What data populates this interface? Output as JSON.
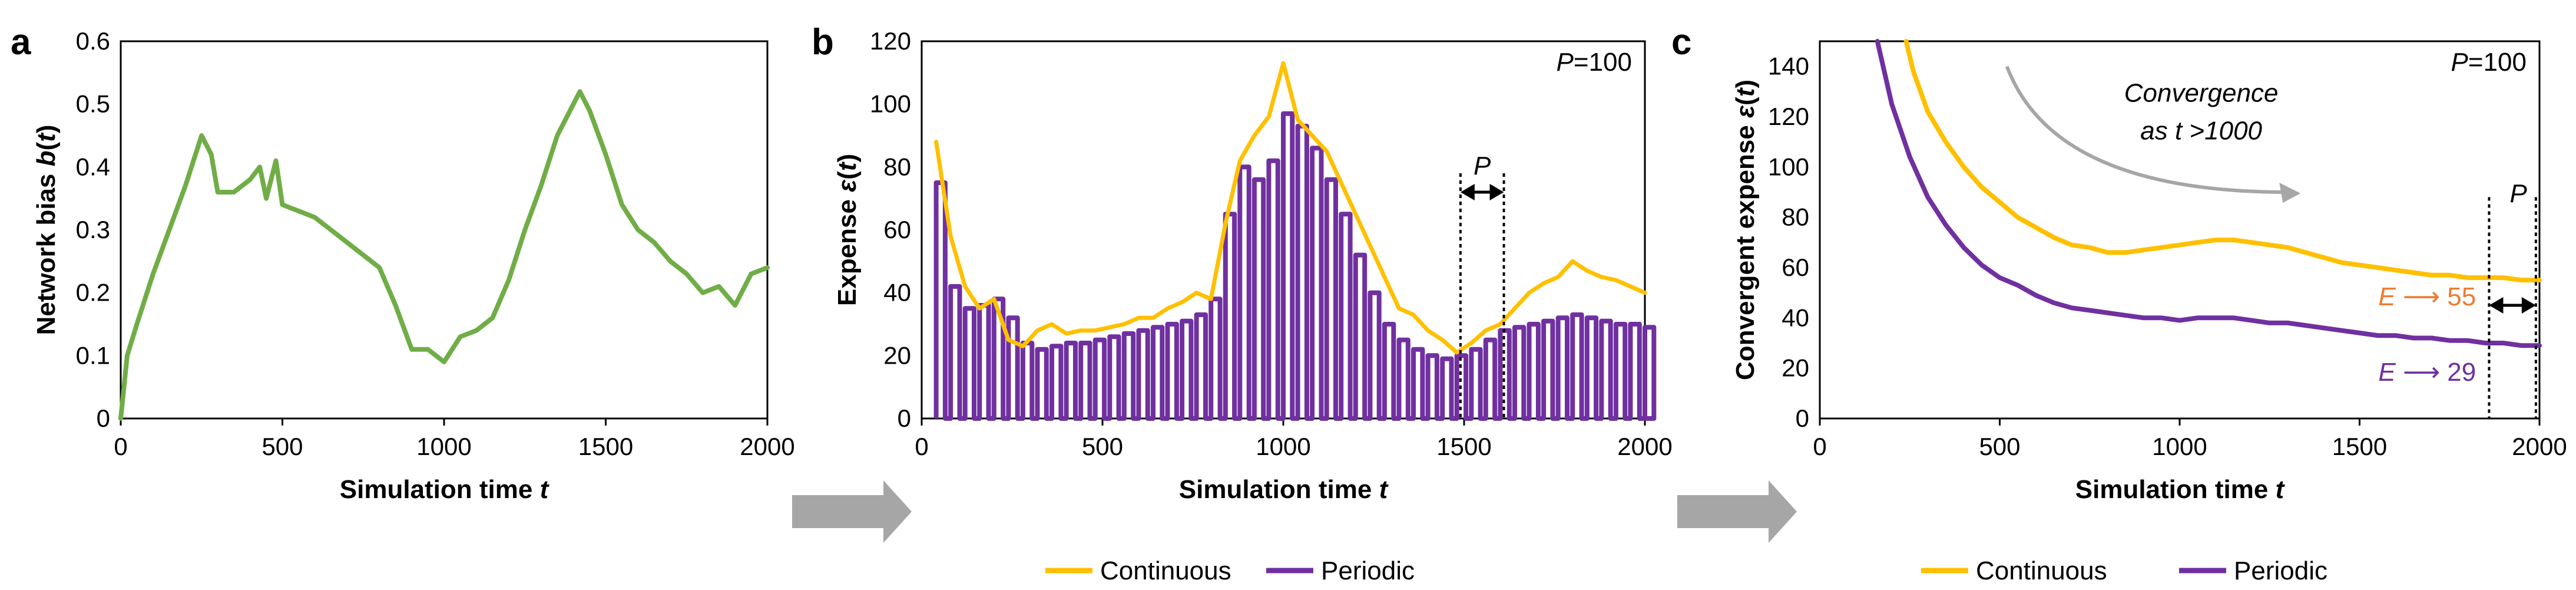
{
  "colors": {
    "green": "#70AD47",
    "continuous": "#FFC000",
    "periodic": "#7030A0",
    "arrow": "#A6A6A6",
    "E55": "#ED7D31",
    "E29": "#7030A0"
  },
  "chart_data": [
    {
      "panel": "a",
      "type": "line",
      "title": "",
      "xlabel": "Simulation time t",
      "ylabel": "Network bias b(t)",
      "xlim": [
        0,
        2000
      ],
      "ylim": [
        0,
        0.6
      ],
      "xticks": [
        "0",
        "500",
        "1000",
        "1500",
        "2000"
      ],
      "yticks": [
        "0",
        "0.1",
        "0.2",
        "0.3",
        "0.4",
        "0.5",
        "0.6"
      ],
      "series": [
        {
          "name": "b(t)",
          "x": [
            0,
            20,
            50,
            100,
            150,
            200,
            250,
            280,
            300,
            350,
            400,
            430,
            450,
            480,
            500,
            550,
            600,
            650,
            700,
            750,
            800,
            850,
            900,
            950,
            1000,
            1050,
            1100,
            1150,
            1200,
            1250,
            1300,
            1350,
            1400,
            1420,
            1450,
            1500,
            1550,
            1600,
            1650,
            1700,
            1750,
            1800,
            1850,
            1900,
            1950,
            2000
          ],
          "values": [
            0,
            0.1,
            0.15,
            0.23,
            0.3,
            0.37,
            0.45,
            0.42,
            0.36,
            0.36,
            0.38,
            0.4,
            0.35,
            0.41,
            0.34,
            0.33,
            0.32,
            0.3,
            0.28,
            0.26,
            0.24,
            0.18,
            0.11,
            0.11,
            0.09,
            0.13,
            0.14,
            0.16,
            0.22,
            0.3,
            0.37,
            0.45,
            0.5,
            0.52,
            0.49,
            0.42,
            0.34,
            0.3,
            0.28,
            0.25,
            0.23,
            0.2,
            0.21,
            0.18,
            0.23,
            0.24
          ]
        }
      ]
    },
    {
      "panel": "b",
      "type": "line",
      "title": "",
      "xlabel": "Simulation time t",
      "ylabel": "Expense ε(t)",
      "xlim": [
        0,
        2000
      ],
      "ylim": [
        0,
        120
      ],
      "xticks": [
        "0",
        "500",
        "1000",
        "1500",
        "2000"
      ],
      "yticks": [
        "0",
        "20",
        "40",
        "60",
        "80",
        "100",
        "120"
      ],
      "annotation": "P=100",
      "period_label": "P",
      "period_marks": [
        1490,
        1610
      ],
      "series": [
        {
          "name": "Continuous",
          "x": [
            40,
            80,
            120,
            160,
            200,
            240,
            280,
            320,
            360,
            400,
            440,
            480,
            520,
            560,
            600,
            640,
            680,
            720,
            760,
            800,
            840,
            880,
            920,
            960,
            1000,
            1040,
            1080,
            1120,
            1160,
            1200,
            1240,
            1280,
            1320,
            1360,
            1400,
            1440,
            1480,
            1520,
            1560,
            1600,
            1640,
            1680,
            1720,
            1760,
            1800,
            1840,
            1880,
            1920,
            1960,
            2000
          ],
          "values": [
            88,
            58,
            42,
            35,
            38,
            25,
            23,
            28,
            30,
            27,
            28,
            28,
            29,
            30,
            32,
            32,
            35,
            37,
            40,
            38,
            62,
            82,
            90,
            96,
            113,
            95,
            90,
            85,
            75,
            65,
            55,
            45,
            35,
            33,
            28,
            25,
            21,
            24,
            28,
            30,
            35,
            40,
            43,
            45,
            50,
            47,
            45,
            44,
            42,
            40
          ]
        },
        {
          "name": "Periodic",
          "x": [
            40,
            80,
            120,
            160,
            200,
            240,
            280,
            320,
            360,
            400,
            440,
            480,
            520,
            560,
            600,
            640,
            680,
            720,
            760,
            800,
            840,
            880,
            920,
            960,
            1000,
            1040,
            1080,
            1120,
            1160,
            1200,
            1240,
            1280,
            1320,
            1360,
            1400,
            1440,
            1480,
            1520,
            1560,
            1600,
            1640,
            1680,
            1720,
            1760,
            1800,
            1840,
            1880,
            1920,
            1960,
            2000
          ],
          "values": [
            75,
            42,
            35,
            36,
            38,
            32,
            24,
            22,
            23,
            24,
            24,
            25,
            26,
            27,
            28,
            29,
            30,
            31,
            33,
            38,
            65,
            80,
            76,
            82,
            97,
            93,
            86,
            76,
            65,
            52,
            40,
            30,
            25,
            22,
            20,
            19,
            20,
            22,
            25,
            28,
            29,
            30,
            31,
            32,
            33,
            32,
            31,
            30,
            30,
            29
          ]
        }
      ]
    },
    {
      "panel": "c",
      "type": "line",
      "title": "",
      "xlabel": "Simulation time t",
      "ylabel": "Convergent expense ε(t)",
      "xlim": [
        0,
        2000
      ],
      "ylim": [
        0,
        150
      ],
      "xticks": [
        "0",
        "500",
        "1000",
        "1500",
        "2000"
      ],
      "yticks": [
        "0",
        "20",
        "40",
        "60",
        "80",
        "100",
        "120",
        "140"
      ],
      "annotation": "P=100",
      "convergence_note": [
        "Convergence",
        "as t >1000"
      ],
      "period_label": "P",
      "period_marks": [
        1860,
        1990
      ],
      "limit_labels": [
        "E ⟶ 55",
        "E ⟶ 29"
      ],
      "series": [
        {
          "name": "Continuous",
          "x": [
            240,
            260,
            300,
            350,
            400,
            450,
            500,
            550,
            600,
            650,
            700,
            750,
            800,
            850,
            900,
            950,
            1000,
            1050,
            1100,
            1150,
            1200,
            1250,
            1300,
            1350,
            1400,
            1450,
            1500,
            1550,
            1600,
            1650,
            1700,
            1750,
            1800,
            1850,
            1900,
            1950,
            2000
          ],
          "values": [
            150,
            138,
            122,
            110,
            100,
            92,
            86,
            80,
            76,
            72,
            69,
            68,
            66,
            66,
            67,
            68,
            69,
            70,
            71,
            71,
            70,
            69,
            68,
            66,
            64,
            62,
            61,
            60,
            59,
            58,
            57,
            57,
            56,
            56,
            56,
            55,
            55
          ]
        },
        {
          "name": "Periodic",
          "x": [
            160,
            200,
            250,
            300,
            350,
            400,
            450,
            500,
            550,
            600,
            650,
            700,
            750,
            800,
            850,
            900,
            950,
            1000,
            1050,
            1100,
            1150,
            1200,
            1250,
            1300,
            1350,
            1400,
            1450,
            1500,
            1550,
            1600,
            1650,
            1700,
            1750,
            1800,
            1850,
            1900,
            1950,
            2000
          ],
          "values": [
            150,
            125,
            104,
            88,
            77,
            68,
            61,
            56,
            53,
            49,
            46,
            44,
            43,
            42,
            41,
            40,
            40,
            39,
            40,
            40,
            40,
            39,
            38,
            38,
            37,
            36,
            35,
            34,
            33,
            33,
            32,
            32,
            31,
            31,
            30,
            30,
            29,
            29
          ]
        }
      ]
    }
  ],
  "legends": [
    {
      "items": [
        "Continuous",
        "Periodic"
      ]
    },
    {
      "items": [
        "Continuous",
        "Periodic"
      ]
    }
  ],
  "flow_arrows": [
    "a-to-b",
    "b-to-c"
  ]
}
